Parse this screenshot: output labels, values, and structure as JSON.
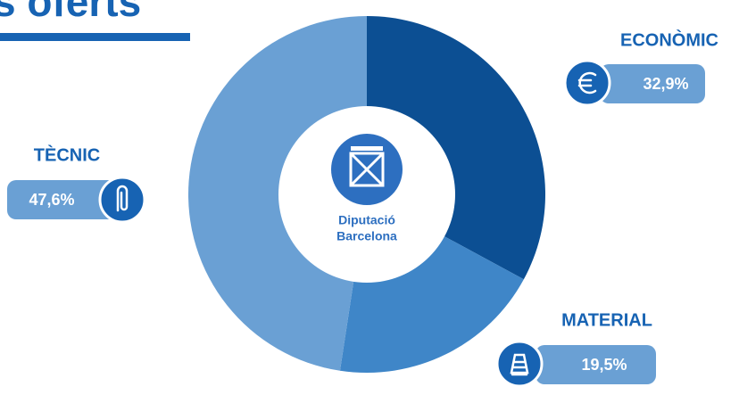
{
  "chart_data": {
    "type": "donut",
    "title": "s oferts",
    "categories": [
      "ECONÒMIC",
      "MATERIAL",
      "TÈCNIC"
    ],
    "values": [
      32.9,
      19.5,
      47.6
    ],
    "value_labels": [
      "32,9%",
      "19,5%",
      "47,6%"
    ],
    "colors": [
      "#0c4f93",
      "#3f86c8",
      "#6aa0d4"
    ],
    "center_text": [
      "Diputació",
      "Barcelona"
    ]
  }
}
